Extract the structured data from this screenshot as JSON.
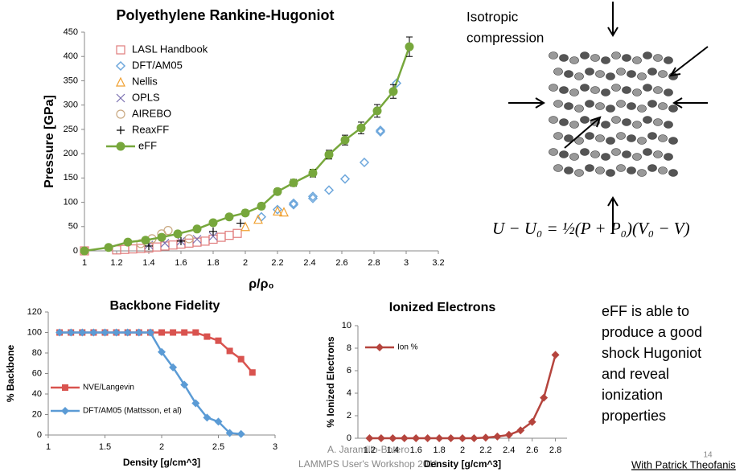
{
  "chart_data": [
    {
      "type": "scatter",
      "title": "Polyethylene Rankine-Hugoniot",
      "xlabel": "ρ/ρ₀",
      "ylabel": "Pressure [GPa]",
      "xlim": [
        1,
        3.2
      ],
      "xticks": [
        1,
        1.2,
        1.4,
        1.6,
        1.8,
        2,
        2.2,
        2.4,
        2.6,
        2.8,
        3,
        3.2
      ],
      "ylim": [
        0,
        450
      ],
      "yticks": [
        0,
        50,
        100,
        150,
        200,
        250,
        300,
        350,
        400,
        450
      ],
      "legend": "upper left",
      "series": [
        {
          "name": "LASL Handbook",
          "color": "#e07b7b",
          "marker": "square",
          "x": [
            1,
            1.2,
            1.25,
            1.3,
            1.35,
            1.4,
            1.45,
            1.5,
            1.55,
            1.6,
            1.65,
            1.7,
            1.75,
            1.8,
            1.85,
            1.9,
            1.95
          ],
          "values": [
            0,
            2,
            3,
            4,
            5,
            6,
            8,
            10,
            12,
            14,
            16,
            18,
            20,
            24,
            28,
            32,
            36
          ]
        },
        {
          "name": "DFT/AM05",
          "color": "#6fa8dc",
          "marker": "diamond",
          "x": [
            2.1,
            2.2,
            2.3,
            2.3,
            2.42,
            2.42,
            2.52,
            2.62,
            2.74,
            2.84,
            2.84,
            2.94
          ],
          "values": [
            70,
            85,
            95,
            98,
            108,
            112,
            125,
            148,
            182,
            245,
            248,
            345
          ]
        },
        {
          "name": "Nellis",
          "color": "#f0a030",
          "marker": "triangle",
          "x": [
            2,
            2.08,
            2.2,
            2.24
          ],
          "values": [
            50,
            65,
            82,
            80
          ]
        },
        {
          "name": "OPLS",
          "color": "#7a6fb0",
          "marker": "x",
          "x": [
            1.4,
            1.5,
            1.6,
            1.7,
            1.8
          ],
          "values": [
            12,
            16,
            20,
            24,
            30
          ]
        },
        {
          "name": "AIREBO",
          "color": "#c9a880",
          "marker": "circle",
          "x": [
            1.35,
            1.42,
            1.48,
            1.52,
            1.65
          ],
          "values": [
            15,
            25,
            35,
            42,
            25
          ]
        },
        {
          "name": "ReaxFF",
          "color": "#000000",
          "marker": "plus",
          "x": [
            1,
            1.4,
            1.6,
            1.8,
            1.97
          ],
          "values": [
            0,
            10,
            20,
            40,
            57
          ]
        },
        {
          "name": "eFF",
          "color": "#77a73c",
          "marker": "filled-circle",
          "line": true,
          "x": [
            1,
            1.15,
            1.27,
            1.38,
            1.48,
            1.58,
            1.7,
            1.8,
            1.9,
            2,
            2.1,
            2.2,
            2.3,
            2.42,
            2.52,
            2.62,
            2.72,
            2.82,
            2.92,
            3.02
          ],
          "values": [
            0,
            7,
            18,
            22,
            28,
            35,
            45,
            58,
            70,
            78,
            92,
            122,
            140,
            160,
            198,
            228,
            253,
            288,
            328,
            420
          ],
          "errors": [
            0,
            2,
            3,
            3,
            3,
            4,
            4,
            4,
            5,
            6,
            6,
            6,
            7,
            8,
            9,
            10,
            12,
            13,
            14,
            20
          ]
        }
      ]
    },
    {
      "type": "line",
      "title": "Backbone Fidelity",
      "xlabel": "Density [g/cm^3]",
      "ylabel": "% Backbone",
      "xlim": [
        1,
        3
      ],
      "xticks": [
        1,
        1.5,
        2,
        2.5,
        3
      ],
      "ylim": [
        0,
        120
      ],
      "yticks": [
        0,
        20,
        40,
        60,
        80,
        100,
        120
      ],
      "legend": "lower left",
      "series": [
        {
          "name": "NVE/Langevin",
          "color": "#d9534f",
          "marker": "filled-square",
          "x": [
            1.1,
            1.2,
            1.3,
            1.4,
            1.5,
            1.6,
            1.7,
            1.8,
            1.9,
            2,
            2.1,
            2.2,
            2.3,
            2.4,
            2.5,
            2.6,
            2.7,
            2.8
          ],
          "values": [
            100,
            100,
            100,
            100,
            100,
            100,
            100,
            100,
            100,
            100,
            100,
            100,
            100,
            96,
            92,
            82,
            74,
            61
          ]
        },
        {
          "name": "DFT/AM05 (Mattsson, et al)",
          "color": "#5b9bd5",
          "marker": "filled-diamond",
          "x": [
            1.1,
            1.2,
            1.3,
            1.4,
            1.5,
            1.6,
            1.7,
            1.8,
            1.9,
            2,
            2.1,
            2.2,
            2.3,
            2.4,
            2.5,
            2.6,
            2.7
          ],
          "values": [
            100,
            100,
            100,
            100,
            100,
            100,
            100,
            100,
            100,
            81,
            66,
            49,
            31,
            17,
            13,
            2,
            1
          ]
        }
      ]
    },
    {
      "type": "line",
      "title": "Ionized Electrons",
      "xlabel": "Density [g/cm^3]",
      "ylabel": "% Ionized Electrons",
      "xlim": [
        1.1,
        2.9
      ],
      "xticks": [
        1.2,
        1.4,
        1.6,
        1.8,
        2,
        2.2,
        2.4,
        2.6,
        2.8
      ],
      "ylim": [
        0,
        10
      ],
      "yticks": [
        0,
        2,
        4,
        6,
        8,
        10
      ],
      "legend": "upper left",
      "series": [
        {
          "name": "Ion %",
          "color": "#b5443d",
          "marker": "filled-diamond",
          "x": [
            1.2,
            1.3,
            1.4,
            1.5,
            1.6,
            1.7,
            1.8,
            1.9,
            2,
            2.1,
            2.2,
            2.3,
            2.4,
            2.5,
            2.6,
            2.7,
            2.8
          ],
          "values": [
            0,
            0,
            0,
            0,
            0,
            0,
            0,
            0,
            0,
            0,
            0.05,
            0.15,
            0.3,
            0.7,
            1.45,
            3.6,
            7.4
          ]
        }
      ]
    }
  ],
  "figure": {
    "label": [
      "Isotropic",
      "compression"
    ],
    "equation": "U − U₀ = ½(P + P₀)(V₀ − V)"
  },
  "caption": [
    "eFF is able to",
    "produce a good",
    "shock Hugoniot",
    "and reveal",
    "ionization",
    "properties"
  ],
  "footer": {
    "author": "A. Jaramillo-Botero",
    "event": "LAMMPS User's Workshop 2011",
    "page": "14",
    "credit": "With Patrick Theofanis"
  }
}
